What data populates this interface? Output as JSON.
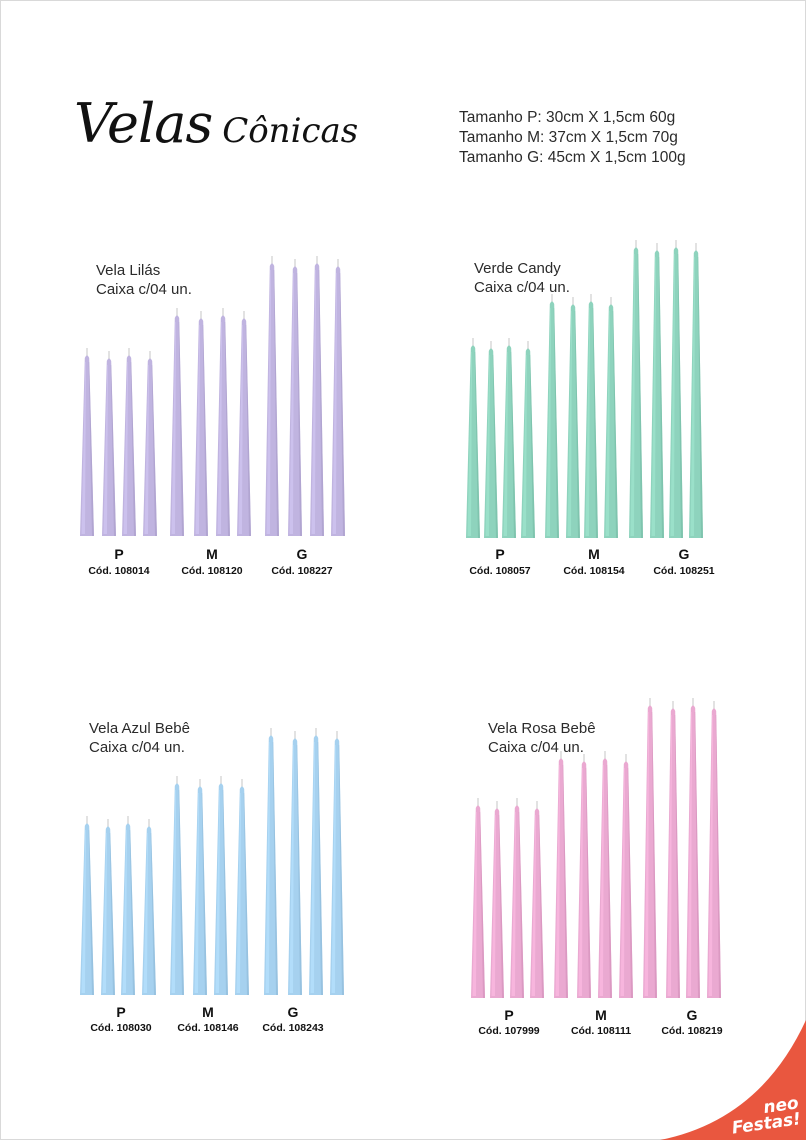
{
  "title": {
    "word1": "Velas",
    "word2": "Cônicas"
  },
  "sizes": [
    "Tamanho P: 30cm X 1,5cm 60g",
    "Tamanho M: 37cm X 1,5cm 70g",
    "Tamanho G: 45cm X 1,5cm 100g"
  ],
  "products": [
    {
      "name": "Vela Lilás",
      "box": "Caixa c/04 un.",
      "color": "#c0b4e0",
      "groups": [
        {
          "size": "P",
          "code": "Cód. 108014"
        },
        {
          "size": "M",
          "code": "Cód. 108120"
        },
        {
          "size": "G",
          "code": "Cód. 108227"
        }
      ]
    },
    {
      "name": "Verde Candy",
      "box": "Caixa c/04 un.",
      "color": "#8ed3bd",
      "groups": [
        {
          "size": "P",
          "code": "Cód. 108057"
        },
        {
          "size": "M",
          "code": "Cód. 108154"
        },
        {
          "size": "G",
          "code": "Cód. 108251"
        }
      ]
    },
    {
      "name": "Vela Azul Bebê",
      "box": "Caixa c/04 un.",
      "color": "#a6d1ef",
      "groups": [
        {
          "size": "P",
          "code": "Cód. 108030"
        },
        {
          "size": "M",
          "code": "Cód. 108146"
        },
        {
          "size": "G",
          "code": "Cód. 108243"
        }
      ]
    },
    {
      "name": "Vela Rosa Bebê",
      "box": "Caixa c/04 un.",
      "color": "#eaa9d1",
      "groups": [
        {
          "size": "P",
          "code": "Cód. 107999"
        },
        {
          "size": "M",
          "code": "Cód. 108111"
        },
        {
          "size": "G",
          "code": "Cód. 108219"
        }
      ]
    }
  ],
  "brand": {
    "line1": "neo",
    "line2": "Festas!",
    "color": "#e9573f"
  }
}
